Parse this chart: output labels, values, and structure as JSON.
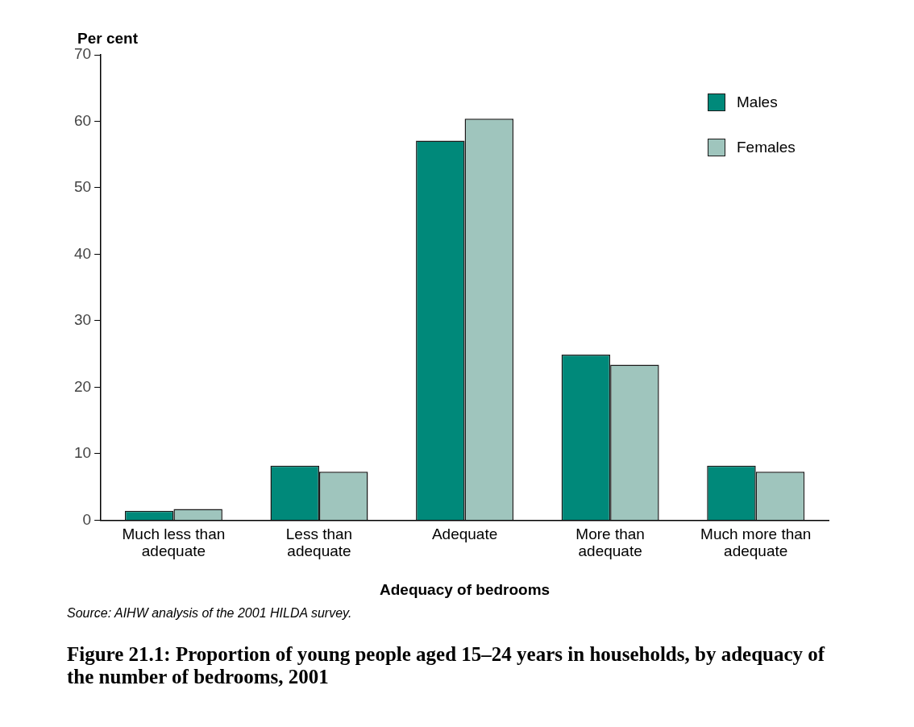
{
  "chart_data": {
    "type": "bar",
    "title": "Figure 21.1: Proportion of young people aged 15–24 years in households, by adequacy of the number of bedrooms, 2001",
    "xlabel": "Adequacy of bedrooms",
    "ylabel": "Per cent",
    "categories": [
      "Much less than adequate",
      "Less than adequate",
      "Adequate",
      "More than adequate",
      "Much more than adequate"
    ],
    "series": [
      {
        "name": "Males",
        "color": "#00897a",
        "values": [
          1.4,
          8.2,
          57.1,
          24.9,
          8.2
        ]
      },
      {
        "name": "Females",
        "color": "#9fc5bd",
        "values": [
          1.7,
          7.3,
          60.4,
          23.4,
          7.3
        ]
      }
    ],
    "ylim": [
      0,
      70
    ],
    "yticks": [
      0,
      10,
      20,
      30,
      40,
      50,
      60,
      70
    ],
    "grid": false,
    "legend": "top right",
    "annotations": [
      "Source: AIHW analysis of the 2001 HILDA survey."
    ]
  }
}
